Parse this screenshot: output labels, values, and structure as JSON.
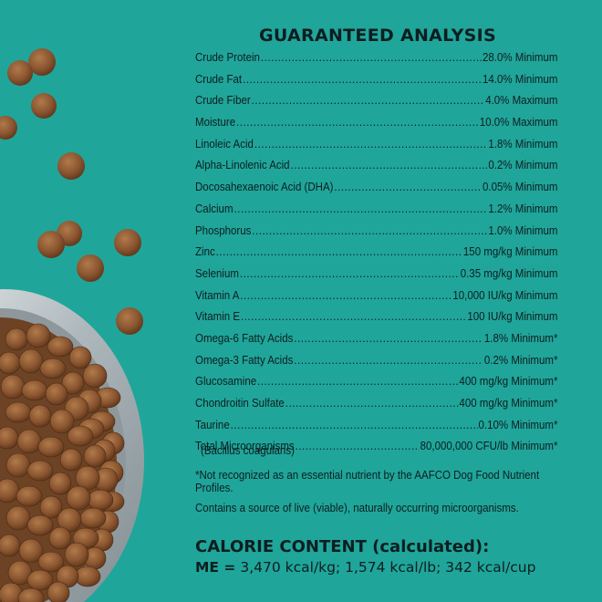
{
  "panel": {
    "title": "GUARANTEED ANALYSIS",
    "rows": [
      {
        "name": "Crude Protein",
        "value": "28.0% Minimum"
      },
      {
        "name": "Crude Fat",
        "value": "14.0% Minimum"
      },
      {
        "name": "Crude Fiber",
        "value": "4.0% Maximum"
      },
      {
        "name": "Moisture",
        "value": "10.0% Maximum"
      },
      {
        "name": "Linoleic Acid",
        "value": "1.8% Minimum"
      },
      {
        "name": "Alpha-Linolenic Acid",
        "value": "0.2% Minimum"
      },
      {
        "name": "Docosahexaenoic Acid (DHA)",
        "value": "0.05% Minimum"
      },
      {
        "name": "Calcium",
        "value": "1.2% Minimum"
      },
      {
        "name": "Phosphorus",
        "value": "1.0% Minimum"
      },
      {
        "name": "Zinc",
        "value": "150 mg/kg Minimum"
      },
      {
        "name": "Selenium",
        "value": "0.35 mg/kg Minimum"
      },
      {
        "name": "Vitamin A",
        "value": "10,000 IU/kg Minimum"
      },
      {
        "name": "Vitamin E",
        "value": "100 IU/kg Minimum"
      },
      {
        "name": "Omega-6 Fatty Acids",
        "value": "1.8% Minimum*"
      },
      {
        "name": "Omega-3 Fatty Acids",
        "value": "0.2% Minimum*"
      },
      {
        "name": "Glucosamine",
        "value": "400 mg/kg Minimum*"
      },
      {
        "name": "Chondroitin Sulfate",
        "value": "400 mg/kg Minimum*"
      },
      {
        "name": "Taurine",
        "value": "0.10% Minimum*"
      },
      {
        "name": "Total Microorganisms",
        "value": "80,000,000 CFU/lb Minimum*"
      }
    ],
    "microorganism_sub": "(Bacillus coagulans)",
    "footnote": "*Not recognized as an essential nutrient by the AAFCO Dog Food Nutrient Profiles.",
    "live_note": "Contains a source of live (viable), naturally occurring microorganisms.",
    "calorie_title": "CALORIE CONTENT (calculated):",
    "calorie_prefix": "ME =",
    "calorie_values": "3,470 kcal/kg; 1,574 kcal/lb; 342 kcal/cup"
  },
  "colors": {
    "background": "#20a59a",
    "text": "#0d1e20",
    "kibble": "#8a5530",
    "bowl": "#c9d2d6"
  }
}
